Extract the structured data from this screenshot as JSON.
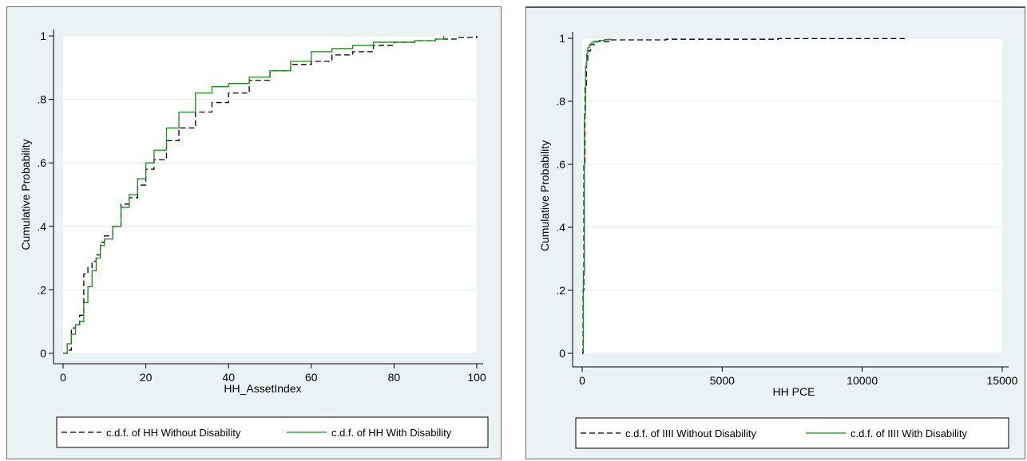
{
  "chart_data": [
    {
      "type": "line",
      "xlabel": "HH_AssetIndex",
      "ylabel": "Cumulative Probability",
      "xlim": [
        0,
        100
      ],
      "ylim": [
        0,
        1
      ],
      "xticks": [
        "0",
        "20",
        "40",
        "60",
        "80",
        "100"
      ],
      "yticks": [
        "0",
        ".2",
        ".4",
        ".6",
        ".8",
        "1"
      ],
      "grid": true,
      "legend_position": "bottom",
      "series": [
        {
          "name": "c.d.f. of  HH Without Disability",
          "style": "dashed",
          "color": "#000000",
          "x": [
            0,
            1,
            2,
            3,
            4,
            5,
            6,
            7,
            8,
            9,
            10,
            12,
            14,
            16,
            18,
            20,
            22,
            25,
            28,
            32,
            36,
            40,
            45,
            50,
            55,
            60,
            65,
            70,
            75,
            80,
            85,
            90,
            95,
            100
          ],
          "y": [
            0,
            0.01,
            0.08,
            0.09,
            0.12,
            0.25,
            0.27,
            0.29,
            0.31,
            0.35,
            0.37,
            0.4,
            0.47,
            0.49,
            0.53,
            0.58,
            0.61,
            0.67,
            0.71,
            0.76,
            0.79,
            0.82,
            0.86,
            0.89,
            0.91,
            0.92,
            0.94,
            0.95,
            0.97,
            0.98,
            0.985,
            0.99,
            0.995,
            1.0
          ]
        },
        {
          "name": "c.d.f. of  HH With Disability",
          "style": "solid",
          "color": "#1a8a1a",
          "x": [
            0,
            1,
            2,
            3,
            4,
            5,
            6,
            7,
            8,
            9,
            10,
            12,
            14,
            16,
            18,
            20,
            22,
            25,
            28,
            32,
            36,
            40,
            45,
            50,
            55,
            60,
            65,
            70,
            75,
            80,
            85,
            90,
            92
          ],
          "y": [
            0,
            0.03,
            0.06,
            0.09,
            0.1,
            0.16,
            0.21,
            0.26,
            0.3,
            0.34,
            0.36,
            0.4,
            0.46,
            0.5,
            0.55,
            0.6,
            0.64,
            0.71,
            0.76,
            0.82,
            0.84,
            0.85,
            0.87,
            0.89,
            0.92,
            0.95,
            0.96,
            0.97,
            0.98,
            0.98,
            0.985,
            0.99,
            1.0
          ]
        }
      ]
    },
    {
      "type": "line",
      "xlabel": "HH  PCE",
      "ylabel": "Cumulative Probability",
      "xlim": [
        0,
        15000
      ],
      "ylim": [
        0,
        1
      ],
      "xticks": [
        "0",
        "5000",
        "10000",
        "15000"
      ],
      "yticks": [
        "0",
        ".2",
        ".4",
        ".6",
        ".8",
        "1"
      ],
      "grid": true,
      "legend_position": "bottom",
      "series": [
        {
          "name": "c.d.f. of  IIII Without Disability",
          "style": "dashed",
          "color": "#000000",
          "x": [
            0,
            30,
            60,
            100,
            150,
            200,
            300,
            500,
            1000,
            3000,
            7000,
            11500
          ],
          "y": [
            0,
            0.2,
            0.6,
            0.85,
            0.93,
            0.96,
            0.98,
            0.99,
            0.995,
            0.997,
            0.999,
            1.0
          ]
        },
        {
          "name": "c.d.f. of  IIII With Disability",
          "style": "solid",
          "color": "#1a8a1a",
          "x": [
            0,
            40,
            80,
            120,
            160,
            200,
            260,
            320,
            400,
            600,
            800,
            1000
          ],
          "y": [
            0.01,
            0.26,
            0.76,
            0.91,
            0.95,
            0.97,
            0.98,
            0.985,
            0.99,
            0.993,
            0.996,
            1.0
          ]
        }
      ]
    }
  ]
}
